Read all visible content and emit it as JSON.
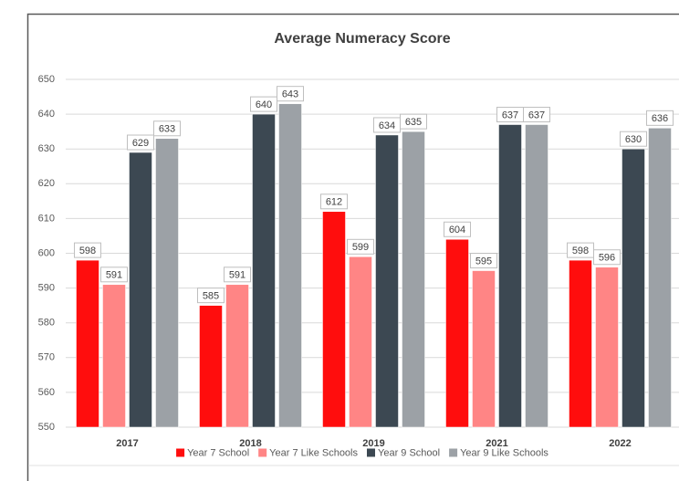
{
  "chart_data": {
    "type": "bar",
    "title": "Average Numeracy Score",
    "categories": [
      "2017",
      "2018",
      "2019",
      "2021",
      "2022"
    ],
    "series": [
      {
        "name": "Year 7 School",
        "color": "#ff0d0d",
        "values": [
          598,
          585,
          612,
          604,
          598
        ]
      },
      {
        "name": "Year 7 Like Schools",
        "color": "#ff8585",
        "values": [
          591,
          591,
          599,
          595,
          596
        ]
      },
      {
        "name": "Year 9 School",
        "color": "#3c4852",
        "values": [
          629,
          640,
          634,
          637,
          630
        ]
      },
      {
        "name": "Year 9 Like Schools",
        "color": "#9ca1a6",
        "values": [
          633,
          643,
          635,
          637,
          636
        ]
      }
    ],
    "ylim": [
      550,
      650
    ],
    "yticks": [
      550,
      560,
      570,
      580,
      590,
      600,
      610,
      620,
      630,
      640,
      650
    ],
    "grid": true,
    "legend": "bottom"
  }
}
